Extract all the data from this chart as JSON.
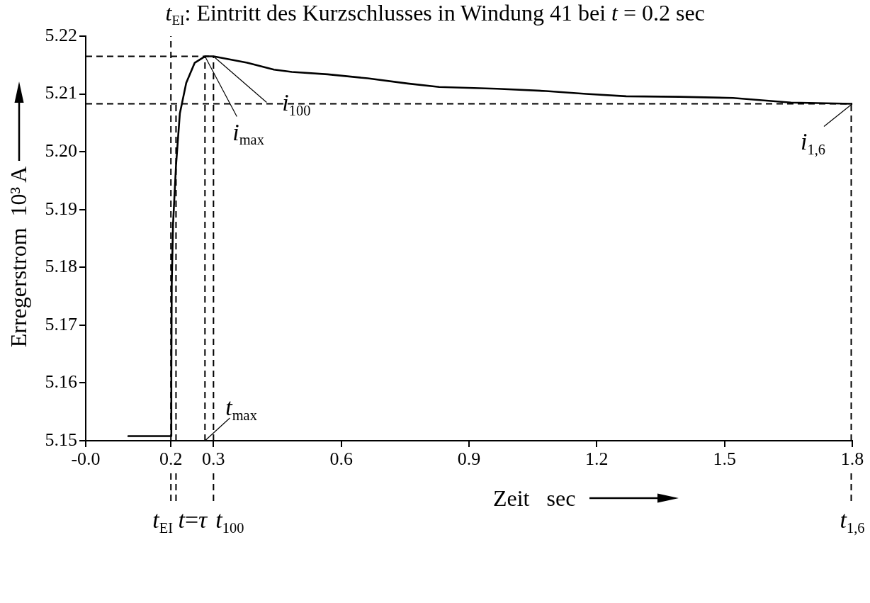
{
  "chart_data": {
    "type": "line",
    "title": "t$_{EI}$: Eintritt des Kurzschlusses in Windung 41 bei t = 0.2 sec",
    "xlabel": "Zeit   sec",
    "ylabel": "Erregerstrom  10³ A",
    "x": [
      0.1,
      0.2,
      0.201,
      0.202,
      0.205,
      0.212,
      0.221,
      0.236,
      0.256,
      0.28,
      0.3,
      0.379,
      0.442,
      0.484,
      0.568,
      0.662,
      0.756,
      0.83,
      0.966,
      1.081,
      1.175,
      1.269,
      1.395,
      1.52,
      1.656,
      1.8
    ],
    "series": [
      {
        "color": "#000000",
        "values": [
          5.1508,
          5.1508,
          5.1609,
          5.1772,
          5.1874,
          5.1976,
          5.2066,
          5.2119,
          5.2154,
          5.2165,
          5.2165,
          5.2154,
          5.2142,
          5.2138,
          5.2134,
          5.2127,
          5.2118,
          5.2112,
          5.2109,
          5.2105,
          5.21,
          5.2096,
          5.2095,
          5.2093,
          5.2085,
          5.2083
        ]
      }
    ],
    "xlim": [
      0,
      1.8
    ],
    "ylim": [
      5.15,
      5.22
    ],
    "xticks": [
      {
        "value": 0,
        "label": "-0.0"
      },
      0.2,
      0.3,
      0.6,
      0.9,
      1.2,
      1.5,
      1.8
    ],
    "yticks": [
      5.15,
      5.16,
      5.17,
      5.18,
      5.19,
      {
        "value": 5.2,
        "label": "5.20"
      },
      5.21,
      5.22
    ],
    "marker": "none",
    "line_style": "solid",
    "ref_lines": [
      {
        "axis": "x",
        "value": 0.2,
        "label": "t$_{EI}$",
        "line_style": "dashed"
      },
      {
        "axis": "x",
        "value": 0.212,
        "label": "t=τ",
        "line_style": "dashed"
      },
      {
        "axis": "x",
        "value": 0.28,
        "label": "t$_{max}$",
        "line_style": "dashed"
      },
      {
        "axis": "x",
        "value": 0.3,
        "label": "t$_{100}$",
        "line_style": "dashed"
      },
      {
        "axis": "x",
        "value": 1.8,
        "label": "t$_{1,6}$",
        "line_style": "dashed"
      },
      {
        "axis": "y",
        "value": 5.2165,
        "line_style": "dashed"
      },
      {
        "axis": "y",
        "value": 5.2083,
        "line_style": "dashed"
      }
    ],
    "annotations": [
      {
        "text": "i$_{max}$",
        "x": 0.28,
        "y": 5.2165
      },
      {
        "text": "i$_{100}$",
        "x": 0.3,
        "y": 5.2165
      },
      {
        "text": "i$_{1,6}$",
        "x": 1.8,
        "y": 5.2083
      }
    ]
  }
}
